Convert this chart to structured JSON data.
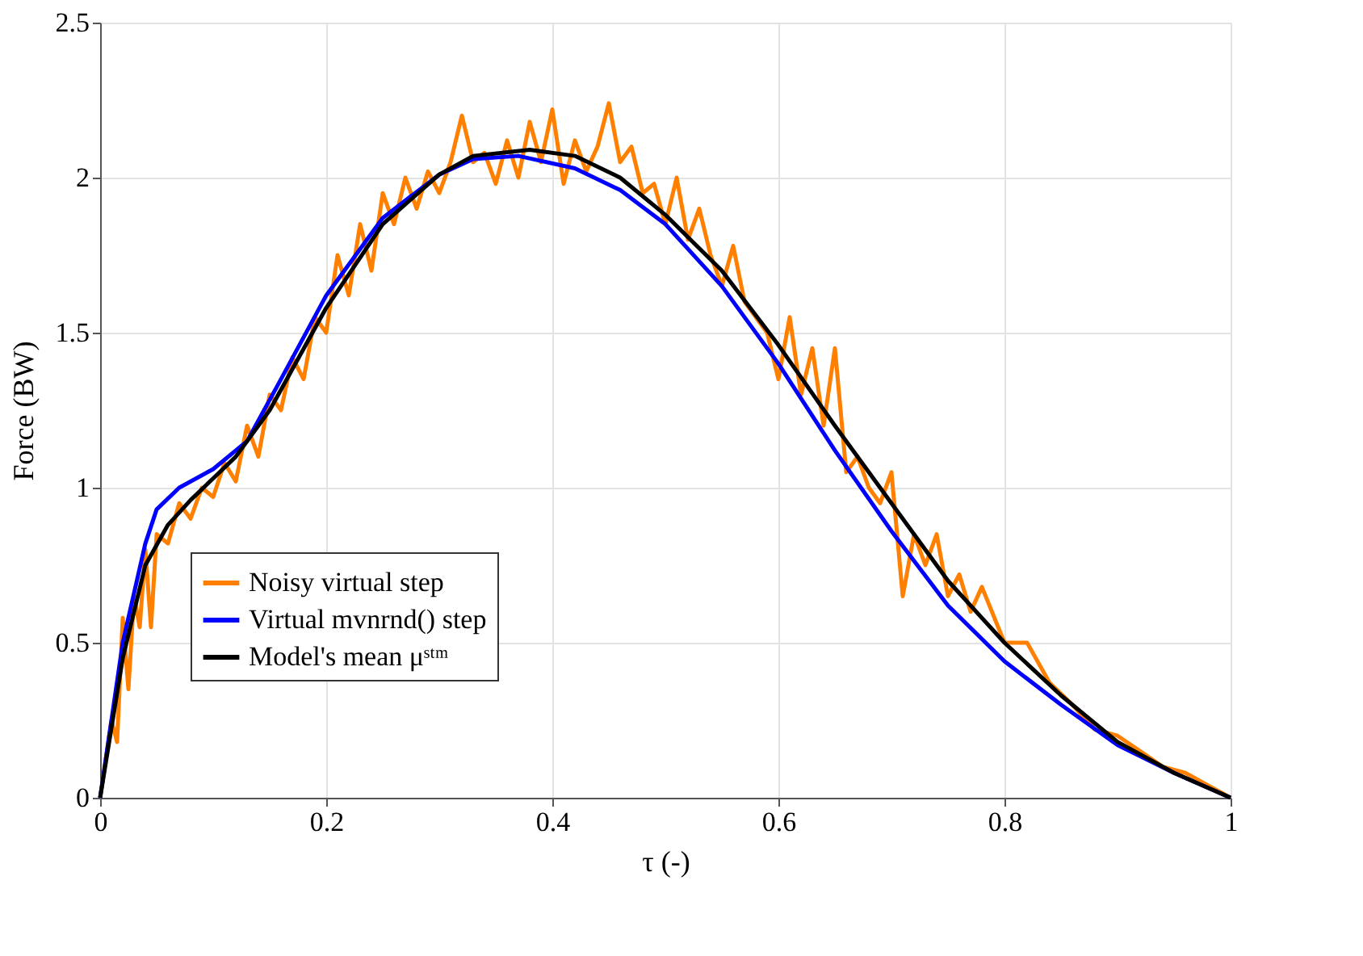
{
  "chart_data": {
    "type": "line",
    "xlabel": "τ (-)",
    "ylabel": "Force (BW)",
    "xlim": [
      0,
      1
    ],
    "ylim": [
      0,
      2.5
    ],
    "xticks": [
      0,
      0.2,
      0.4,
      0.6,
      0.8,
      1
    ],
    "yticks": [
      0,
      0.5,
      1,
      1.5,
      2,
      2.5
    ],
    "grid": true,
    "legend": "bottom left",
    "line_style": "solid",
    "marker": "none",
    "series": [
      {
        "name": "Noisy virtual step",
        "color": "#ff8000",
        "x": [
          0,
          0.01,
          0.015,
          0.02,
          0.025,
          0.03,
          0.035,
          0.04,
          0.045,
          0.05,
          0.06,
          0.07,
          0.08,
          0.09,
          0.1,
          0.11,
          0.12,
          0.13,
          0.14,
          0.15,
          0.16,
          0.17,
          0.18,
          0.19,
          0.2,
          0.21,
          0.22,
          0.23,
          0.24,
          0.25,
          0.26,
          0.27,
          0.28,
          0.29,
          0.3,
          0.31,
          0.32,
          0.33,
          0.34,
          0.35,
          0.36,
          0.37,
          0.38,
          0.39,
          0.4,
          0.41,
          0.42,
          0.43,
          0.44,
          0.45,
          0.46,
          0.47,
          0.48,
          0.49,
          0.5,
          0.51,
          0.52,
          0.53,
          0.54,
          0.55,
          0.56,
          0.57,
          0.58,
          0.59,
          0.6,
          0.61,
          0.62,
          0.63,
          0.64,
          0.65,
          0.66,
          0.67,
          0.68,
          0.69,
          0.7,
          0.71,
          0.72,
          0.73,
          0.74,
          0.75,
          0.76,
          0.77,
          0.78,
          0.8,
          0.82,
          0.84,
          0.86,
          0.88,
          0.9,
          0.92,
          0.94,
          0.96,
          0.98,
          1
        ],
        "values": [
          0,
          0.25,
          0.18,
          0.58,
          0.35,
          0.65,
          0.55,
          0.8,
          0.55,
          0.85,
          0.82,
          0.95,
          0.9,
          1.0,
          0.97,
          1.08,
          1.02,
          1.2,
          1.1,
          1.3,
          1.25,
          1.42,
          1.35,
          1.55,
          1.5,
          1.75,
          1.62,
          1.85,
          1.7,
          1.95,
          1.85,
          2.0,
          1.9,
          2.02,
          1.95,
          2.05,
          2.2,
          2.05,
          2.08,
          1.98,
          2.12,
          2.0,
          2.18,
          2.05,
          2.22,
          1.98,
          2.12,
          2.02,
          2.1,
          2.24,
          2.05,
          2.1,
          1.95,
          1.98,
          1.85,
          2.0,
          1.8,
          1.9,
          1.75,
          1.65,
          1.78,
          1.6,
          1.55,
          1.5,
          1.35,
          1.55,
          1.3,
          1.45,
          1.2,
          1.45,
          1.05,
          1.1,
          1.0,
          0.95,
          1.05,
          0.65,
          0.85,
          0.75,
          0.85,
          0.65,
          0.72,
          0.6,
          0.68,
          0.5,
          0.5,
          0.37,
          0.3,
          0.22,
          0.2,
          0.15,
          0.1,
          0.08,
          0.04,
          0
        ]
      },
      {
        "name": "Virtual mvnrnd() step",
        "color": "#0000ff",
        "x": [
          0,
          0.02,
          0.04,
          0.05,
          0.07,
          0.1,
          0.13,
          0.16,
          0.2,
          0.25,
          0.3,
          0.33,
          0.37,
          0.42,
          0.46,
          0.5,
          0.55,
          0.6,
          0.65,
          0.7,
          0.75,
          0.8,
          0.85,
          0.9,
          0.95,
          1
        ],
        "values": [
          0,
          0.5,
          0.82,
          0.93,
          1.0,
          1.06,
          1.15,
          1.35,
          1.62,
          1.87,
          2.01,
          2.06,
          2.07,
          2.03,
          1.96,
          1.85,
          1.65,
          1.4,
          1.12,
          0.86,
          0.62,
          0.44,
          0.3,
          0.17,
          0.08,
          0
        ]
      },
      {
        "name": "Model's mean μˢᵗᵐ",
        "color": "#000000",
        "x": [
          0,
          0.02,
          0.04,
          0.06,
          0.08,
          0.1,
          0.12,
          0.15,
          0.2,
          0.25,
          0.3,
          0.33,
          0.38,
          0.42,
          0.46,
          0.5,
          0.55,
          0.6,
          0.65,
          0.7,
          0.75,
          0.8,
          0.85,
          0.9,
          0.95,
          1
        ],
        "values": [
          0,
          0.45,
          0.75,
          0.88,
          0.96,
          1.03,
          1.1,
          1.25,
          1.58,
          1.85,
          2.01,
          2.07,
          2.09,
          2.07,
          2.0,
          1.88,
          1.7,
          1.46,
          1.2,
          0.95,
          0.7,
          0.5,
          0.33,
          0.18,
          0.08,
          0
        ]
      }
    ]
  }
}
